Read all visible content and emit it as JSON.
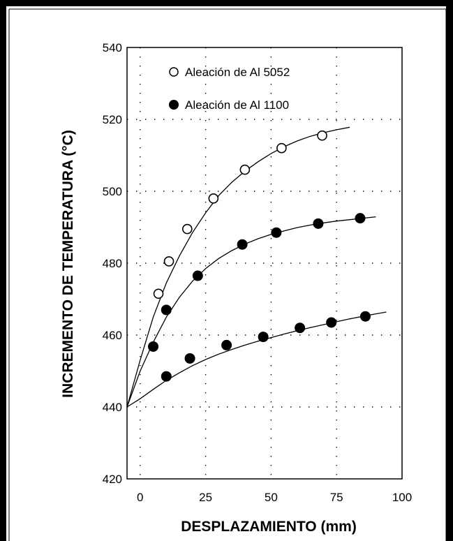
{
  "chart_data": {
    "type": "scatter",
    "title": "",
    "xlabel": "DESPLAZAMIENTO  (mm)",
    "ylabel": "INCREMENTO DE TEMPERATURA  (°C)",
    "xlim": [
      -5,
      100
    ],
    "ylim": [
      420,
      540
    ],
    "x_ticks": [
      0,
      25,
      50,
      75,
      100
    ],
    "y_ticks": [
      420,
      440,
      460,
      480,
      500,
      520,
      540
    ],
    "x_tick_labels": [
      "0",
      "25",
      "50",
      "75",
      "100"
    ],
    "y_tick_labels": [
      "420",
      "440",
      "460",
      "480",
      "500",
      "520",
      "540"
    ],
    "grid": "dotted",
    "legend_position": "top-left",
    "series": [
      {
        "name": "Aleación de Al 5052",
        "marker": "open-circle",
        "points": [
          [
            7,
            471.5
          ],
          [
            11,
            480.5
          ],
          [
            18,
            489.5
          ],
          [
            28,
            498
          ],
          [
            40,
            506
          ],
          [
            54,
            512
          ],
          [
            69.5,
            515.5
          ]
        ],
        "curve": [
          [
            -5,
            440
          ],
          [
            0,
            453
          ],
          [
            5,
            465
          ],
          [
            10,
            474.5
          ],
          [
            15,
            482
          ],
          [
            20,
            488.5
          ],
          [
            25,
            494
          ],
          [
            30,
            498.8
          ],
          [
            35,
            502.5
          ],
          [
            40,
            505.6
          ],
          [
            45,
            508.2
          ],
          [
            50,
            510.5
          ],
          [
            55,
            512.4
          ],
          [
            60,
            514
          ],
          [
            65,
            515.3
          ],
          [
            70,
            516.3
          ],
          [
            75,
            517.1
          ],
          [
            80,
            517.8
          ]
        ]
      },
      {
        "name": "Aleación de Al 1100",
        "marker": "filled-circle",
        "points": [
          [
            5,
            456.8
          ],
          [
            10,
            467
          ],
          [
            22,
            476.5
          ],
          [
            39,
            485.2
          ],
          [
            52,
            488.5
          ],
          [
            68,
            491
          ],
          [
            84,
            492.5
          ]
        ],
        "curve": [
          [
            -5,
            440
          ],
          [
            0,
            450
          ],
          [
            5,
            458
          ],
          [
            10,
            465
          ],
          [
            15,
            470.5
          ],
          [
            20,
            475
          ],
          [
            25,
            478.5
          ],
          [
            30,
            481.3
          ],
          [
            35,
            483.5
          ],
          [
            40,
            485.3
          ],
          [
            45,
            486.8
          ],
          [
            50,
            488
          ],
          [
            55,
            489
          ],
          [
            60,
            489.9
          ],
          [
            65,
            490.6
          ],
          [
            70,
            491.2
          ],
          [
            75,
            491.7
          ],
          [
            80,
            492.1
          ],
          [
            85,
            492.5
          ],
          [
            90,
            492.9
          ]
        ]
      },
      {
        "name": "",
        "marker": "filled-circle",
        "points": [
          [
            10,
            448.5
          ],
          [
            19,
            453.5
          ],
          [
            33,
            457.2
          ],
          [
            47,
            459.5
          ],
          [
            61,
            462
          ],
          [
            73,
            463.5
          ],
          [
            86,
            465.2
          ]
        ],
        "curve": [
          [
            -5,
            440
          ],
          [
            0,
            442.3
          ],
          [
            5,
            444.9
          ],
          [
            10,
            447.4
          ],
          [
            15,
            449.5
          ],
          [
            20,
            451.5
          ],
          [
            25,
            453.2
          ],
          [
            30,
            454.7
          ],
          [
            35,
            456
          ],
          [
            40,
            457.2
          ],
          [
            45,
            458.3
          ],
          [
            50,
            459.3
          ],
          [
            55,
            460.3
          ],
          [
            60,
            461.2
          ],
          [
            65,
            462.1
          ],
          [
            70,
            462.9
          ],
          [
            75,
            463.7
          ],
          [
            80,
            464.5
          ],
          [
            85,
            465.2
          ],
          [
            90,
            465.9
          ],
          [
            94,
            466.4
          ]
        ]
      }
    ]
  }
}
